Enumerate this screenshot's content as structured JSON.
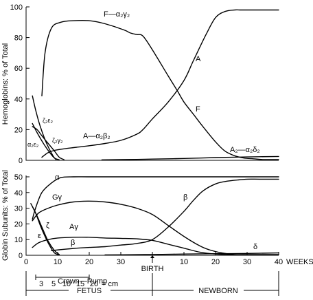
{
  "chart_data": [
    {
      "type": "line",
      "ylabel": "Hemoglobins: % of Total",
      "ylim": [
        0,
        100
      ],
      "y_ticks": [
        "0",
        "20",
        "40",
        "60",
        "80",
        "100"
      ],
      "series": [
        {
          "name": "F—α2γ2",
          "label_text": "F—α₂γ₂",
          "x": [
            5,
            6,
            8,
            11,
            15,
            20,
            25,
            31,
            33,
            35,
            37,
            40,
            45,
            48,
            50,
            53,
            56,
            60,
            63,
            66,
            69,
            72,
            75,
            80
          ],
          "y": [
            42,
            70,
            86,
            90,
            91,
            91,
            89,
            85,
            83,
            82,
            81,
            72,
            55,
            45,
            38,
            30,
            22,
            12,
            6,
            3,
            1.5,
            1,
            0.5,
            0.5
          ]
        },
        {
          "name": "A—α2β2",
          "label_text": "A—α₂β₂",
          "x": [
            5,
            7,
            9,
            12,
            16,
            20,
            25,
            30,
            35,
            37,
            40,
            45,
            50,
            53,
            57,
            60,
            63,
            66,
            68,
            70,
            75,
            80
          ],
          "y": [
            2,
            5,
            6.5,
            7.5,
            8.5,
            9.5,
            11,
            13,
            17,
            20,
            27,
            38,
            52,
            65,
            82,
            93,
            97,
            98,
            98,
            98,
            98,
            98
          ]
        },
        {
          "name": "A2—α2δ2",
          "label_text": "A₂—α₂δ₂",
          "x": [
            24,
            35,
            40,
            50,
            60,
            70,
            80
          ],
          "y": [
            0.3,
            0.6,
            0.8,
            1.2,
            1.8,
            2.2,
            2.5
          ]
        },
        {
          "name": "ζ2ε2",
          "label_text": "ζ₂ε₂",
          "x": [
            2,
            3,
            4.5,
            6.5,
            8.5,
            9.5
          ],
          "y": [
            42,
            33,
            22,
            11,
            3,
            0.5
          ]
        },
        {
          "name": "α2ε2",
          "label_text": "α₂ε₂",
          "x": [
            2,
            3.5,
            5.5,
            7.5,
            9,
            10.5
          ],
          "y": [
            24,
            18,
            11,
            5,
            1.5,
            0.3
          ]
        },
        {
          "name": "ζ2γ2",
          "label_text": "ζ₂γ₂",
          "x": [
            2,
            3.5,
            5,
            7,
            9,
            10.5,
            12
          ],
          "y": [
            22,
            20,
            16,
            11,
            6,
            2,
            0.5
          ]
        }
      ]
    },
    {
      "type": "line",
      "ylabel": "Globin Subunits: % of Total",
      "xlabel": "WEEKS",
      "ylim": [
        0,
        50
      ],
      "xlim": [
        0,
        80
      ],
      "y_ticks": [
        "0",
        "10",
        "20",
        "30",
        "40",
        "50"
      ],
      "x_ticks": [
        "0",
        "10",
        "20",
        "30",
        "BIRTH",
        "10",
        "20",
        "30",
        "40"
      ],
      "series": [
        {
          "name": "α",
          "x": [
            2,
            3,
            5,
            8,
            11,
            15,
            20,
            30,
            40,
            50,
            60,
            70,
            80
          ],
          "y": [
            23,
            30,
            40,
            46,
            49.5,
            50,
            50,
            50,
            50,
            50,
            50,
            50,
            50
          ]
        },
        {
          "name": "Gγ",
          "x": [
            2,
            4,
            7,
            10,
            15,
            20,
            25,
            30,
            35,
            40,
            45,
            50,
            55,
            58,
            62,
            66,
            70,
            74,
            80
          ],
          "y": [
            22,
            27,
            30,
            32,
            34,
            34.5,
            34,
            32.5,
            30,
            26,
            19,
            12,
            6,
            3.5,
            1.5,
            0.5,
            0.5,
            0.5,
            0.5
          ]
        },
        {
          "name": "Aγ",
          "x": [
            2,
            4,
            7,
            10,
            15,
            20,
            25,
            30,
            35,
            40,
            45,
            50,
            55,
            60,
            65,
            70,
            80
          ],
          "y": [
            5,
            8,
            10,
            11,
            11.5,
            11.5,
            11,
            10.8,
            10.5,
            9.5,
            7,
            4.5,
            2,
            0.8,
            0.4,
            0.3,
            0.3
          ]
        },
        {
          "name": "β",
          "x": [
            8,
            12,
            16,
            20,
            25,
            30,
            35,
            40,
            45,
            50,
            53,
            56,
            60,
            63,
            67,
            70,
            74,
            80
          ],
          "y": [
            3,
            3.8,
            4.5,
            5,
            5.5,
            6.5,
            7.5,
            10,
            18,
            28,
            35,
            41,
            45.5,
            47,
            48,
            48.5,
            48.5,
            48.5
          ]
        },
        {
          "name": "δ",
          "x": [
            25,
            35,
            40,
            50,
            60,
            70,
            80
          ],
          "y": [
            0.2,
            0.4,
            0.5,
            0.8,
            1,
            1.2,
            1.5
          ]
        },
        {
          "name": "ζ",
          "x": [
            2,
            3.5,
            5,
            7,
            9,
            10.5
          ],
          "y": [
            31,
            25,
            18,
            9,
            3,
            0.5
          ]
        },
        {
          "name": "ε",
          "x": [
            1.5,
            3,
            4.5,
            6,
            7.5,
            9,
            10.5
          ],
          "y": [
            33,
            27,
            19,
            12,
            6,
            1.5,
            0.3
          ]
        }
      ],
      "annotations": {
        "crown_rump_label": "Crown—Rump",
        "crown_rump_values": [
          "3",
          "5",
          "10",
          "15",
          "20"
        ],
        "crown_rump_unit": "= cm",
        "fetus": "FETUS",
        "newborn": "NEWBORN"
      }
    }
  ]
}
